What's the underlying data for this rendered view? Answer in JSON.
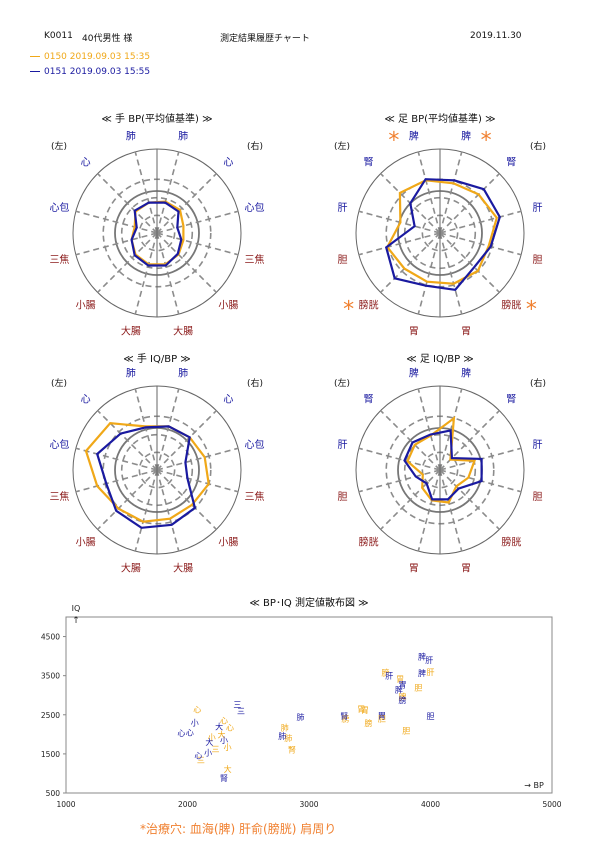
{
  "header": {
    "patient_id": "K0011",
    "patient_desc": "40代男性 様",
    "title": "測定結果履歴チャート",
    "date": "2019.11.30"
  },
  "legend": [
    {
      "label": "0150  2019.09.03  15:35",
      "color": "#f0a818"
    },
    {
      "label": "0151  2019.09.03  15:55",
      "color": "#1a1aa0"
    }
  ],
  "colors": {
    "orange": "#f0a818",
    "blue": "#1a1aa0",
    "yin": "#1a1aa0",
    "yang": "#8b1a1a",
    "grid": "#8c8c8c",
    "star": "#f08030"
  },
  "note": "*治療穴: 血海(脾) 肝俞(膀胱) 肩周り",
  "chart_data": [
    {
      "type": "radar",
      "title": "≪ 手 BP(平均値基準) ≫",
      "side_left": "(左)",
      "side_right": "(右)",
      "axes": [
        {
          "label": "肺",
          "kind": "yin"
        },
        {
          "label": "心",
          "kind": "yin"
        },
        {
          "label": "心包",
          "kind": "yin"
        },
        {
          "label": "三焦",
          "kind": "yang"
        },
        {
          "label": "小腸",
          "kind": "yang"
        },
        {
          "label": "大腸",
          "kind": "yang"
        },
        {
          "label": "大腸",
          "kind": "yang"
        },
        {
          "label": "小腸",
          "kind": "yang"
        },
        {
          "label": "三焦",
          "kind": "yang"
        },
        {
          "label": "心包",
          "kind": "yin"
        },
        {
          "label": "心",
          "kind": "yin"
        },
        {
          "label": "肺",
          "kind": "yin"
        }
      ],
      "rmax": 4,
      "series": [
        {
          "name": "0150",
          "color": "orange",
          "values": [
            1.55,
            1.55,
            1.3,
            1.3,
            1.45,
            1.55,
            1.55,
            1.45,
            1.25,
            1.1,
            1.45,
            1.5
          ]
        },
        {
          "name": "0151",
          "color": "blue",
          "values": [
            1.5,
            1.45,
            1.0,
            1.2,
            1.4,
            1.6,
            1.6,
            1.5,
            1.25,
            1.0,
            1.5,
            1.5
          ]
        }
      ]
    },
    {
      "type": "radar",
      "title": "≪ 足 BP(平均値基準) ≫",
      "side_left": "(左)",
      "side_right": "(右)",
      "axes": [
        {
          "label": "脾",
          "kind": "yin",
          "star": true
        },
        {
          "label": "腎",
          "kind": "yin"
        },
        {
          "label": "肝",
          "kind": "yin"
        },
        {
          "label": "胆",
          "kind": "yang"
        },
        {
          "label": "膀胱",
          "kind": "yang",
          "star": true
        },
        {
          "label": "胃",
          "kind": "yang"
        },
        {
          "label": "胃",
          "kind": "yang"
        },
        {
          "label": "膀胱",
          "kind": "yang",
          "star": true
        },
        {
          "label": "胆",
          "kind": "yang"
        },
        {
          "label": "肝",
          "kind": "yin"
        },
        {
          "label": "腎",
          "kind": "yin"
        },
        {
          "label": "脾",
          "kind": "yin",
          "star": true
        }
      ],
      "rmax": 4,
      "series": [
        {
          "name": "0150",
          "color": "orange",
          "values": [
            2.45,
            2.6,
            2.8,
            2.4,
            2.55,
            2.5,
            2.4,
            2.4,
            2.6,
            1.95,
            2.7,
            2.6
          ]
        },
        {
          "name": "0151",
          "color": "blue",
          "values": [
            2.6,
            2.95,
            2.95,
            2.5,
            2.3,
            2.8,
            2.6,
            3.05,
            2.65,
            1.25,
            2.0,
            2.65
          ]
        }
      ]
    },
    {
      "type": "radar",
      "title": "≪ 手 IQ/BP ≫",
      "side_left": "(左)",
      "side_right": "(右)",
      "axes": [
        {
          "label": "肺",
          "kind": "yin"
        },
        {
          "label": "心",
          "kind": "yin"
        },
        {
          "label": "心包",
          "kind": "yin"
        },
        {
          "label": "三焦",
          "kind": "yang"
        },
        {
          "label": "小腸",
          "kind": "yang"
        },
        {
          "label": "大腸",
          "kind": "yang"
        },
        {
          "label": "大腸",
          "kind": "yang"
        },
        {
          "label": "小腸",
          "kind": "yang"
        },
        {
          "label": "三焦",
          "kind": "yang"
        },
        {
          "label": "心包",
          "kind": "yin"
        },
        {
          "label": "心",
          "kind": "yin"
        },
        {
          "label": "肺",
          "kind": "yin"
        }
      ],
      "rmax": 4,
      "series": [
        {
          "name": "0150",
          "color": "orange",
          "values": [
            2.15,
            2.2,
            2.35,
            2.55,
            2.35,
            2.4,
            2.55,
            2.6,
            2.95,
            3.5,
            3.15,
            2.15
          ]
        },
        {
          "name": "0151",
          "color": "blue",
          "values": [
            2.15,
            2.2,
            1.4,
            1.5,
            2.55,
            2.7,
            2.85,
            2.75,
            2.5,
            2.95,
            2.45,
            2.1
          ]
        }
      ]
    },
    {
      "type": "radar",
      "title": "≪ 足 IQ/BP ≫",
      "side_left": "(左)",
      "side_right": "(右)",
      "axes": [
        {
          "label": "脾",
          "kind": "yin"
        },
        {
          "label": "腎",
          "kind": "yin"
        },
        {
          "label": "肝",
          "kind": "yin"
        },
        {
          "label": "胆",
          "kind": "yang"
        },
        {
          "label": "膀胱",
          "kind": "yang"
        },
        {
          "label": "胃",
          "kind": "yang"
        },
        {
          "label": "胃",
          "kind": "yang"
        },
        {
          "label": "膀胱",
          "kind": "yang"
        },
        {
          "label": "胆",
          "kind": "yang"
        },
        {
          "label": "肝",
          "kind": "yin"
        },
        {
          "label": "腎",
          "kind": "yin"
        },
        {
          "label": "脾",
          "kind": "yin"
        }
      ],
      "rmax": 4,
      "series": [
        {
          "name": "0150",
          "color": "orange",
          "values": [
            2.55,
            0.7,
            1.7,
            1.4,
            1.1,
            1.6,
            1.5,
            1.2,
            0.85,
            1.6,
            1.7,
            1.7
          ]
        },
        {
          "name": "0151",
          "color": "blue",
          "values": [
            1.95,
            0.8,
            2.05,
            2.05,
            1.25,
            1.45,
            1.45,
            0.9,
            1.2,
            1.75,
            1.85,
            1.75
          ]
        }
      ]
    },
    {
      "type": "scatter",
      "title": "≪ BP･IQ 測定値散布図 ≫",
      "xlabel": "→ BP",
      "ylabel": "IQ ↑",
      "xlim": [
        1000,
        5000
      ],
      "ylim": [
        500,
        5000
      ],
      "xticks": [
        1000,
        2000,
        3000,
        4000,
        5000
      ],
      "yticks": [
        500,
        1500,
        2500,
        3500,
        4500
      ],
      "series": [
        {
          "name": "0150",
          "color": "orange",
          "points": [
            {
              "x": 2080,
              "y": 2630,
              "label": "心"
            },
            {
              "x": 2300,
              "y": 2350,
              "label": "心"
            },
            {
              "x": 2350,
              "y": 2170,
              "label": "心"
            },
            {
              "x": 2280,
              "y": 2000,
              "label": "大"
            },
            {
              "x": 2330,
              "y": 1680,
              "label": "小"
            },
            {
              "x": 2230,
              "y": 1620,
              "label": "三"
            },
            {
              "x": 2110,
              "y": 1340,
              "label": "三"
            },
            {
              "x": 2330,
              "y": 1120,
              "label": "大"
            },
            {
              "x": 2200,
              "y": 1930,
              "label": "小"
            },
            {
              "x": 2800,
              "y": 2180,
              "label": "肺"
            },
            {
              "x": 2830,
              "y": 1900,
              "label": "肺"
            },
            {
              "x": 2860,
              "y": 1610,
              "label": "腎"
            },
            {
              "x": 3300,
              "y": 2400,
              "label": "膀"
            },
            {
              "x": 3430,
              "y": 2650,
              "label": "胃"
            },
            {
              "x": 3460,
              "y": 2620,
              "label": "胃"
            },
            {
              "x": 3490,
              "y": 2290,
              "label": "膀"
            },
            {
              "x": 3630,
              "y": 3580,
              "label": "膀"
            },
            {
              "x": 3750,
              "y": 3420,
              "label": "胃"
            },
            {
              "x": 3900,
              "y": 3200,
              "label": "胆"
            },
            {
              "x": 4000,
              "y": 3600,
              "label": "肝"
            },
            {
              "x": 3770,
              "y": 2970,
              "label": "脾"
            },
            {
              "x": 3600,
              "y": 2400,
              "label": "胆"
            },
            {
              "x": 3800,
              "y": 2100,
              "label": "胆"
            }
          ]
        },
        {
          "name": "0151",
          "color": "blue",
          "points": [
            {
              "x": 2060,
              "y": 2300,
              "label": "小"
            },
            {
              "x": 1950,
              "y": 2040,
              "label": "心"
            },
            {
              "x": 2020,
              "y": 2050,
              "label": "心"
            },
            {
              "x": 2180,
              "y": 1800,
              "label": "大"
            },
            {
              "x": 2260,
              "y": 2200,
              "label": "大"
            },
            {
              "x": 2410,
              "y": 2760,
              "label": "三"
            },
            {
              "x": 2440,
              "y": 2600,
              "label": "三"
            },
            {
              "x": 2170,
              "y": 1530,
              "label": "小"
            },
            {
              "x": 2090,
              "y": 1460,
              "label": "心"
            },
            {
              "x": 2300,
              "y": 880,
              "label": "腎"
            },
            {
              "x": 2300,
              "y": 1860,
              "label": "小"
            },
            {
              "x": 2780,
              "y": 1960,
              "label": "肺"
            },
            {
              "x": 2930,
              "y": 2440,
              "label": "肺"
            },
            {
              "x": 3290,
              "y": 2470,
              "label": "腎"
            },
            {
              "x": 3600,
              "y": 2480,
              "label": "胃"
            },
            {
              "x": 3660,
              "y": 3510,
              "label": "肝"
            },
            {
              "x": 3770,
              "y": 3280,
              "label": "胃"
            },
            {
              "x": 3740,
              "y": 3140,
              "label": "脾"
            },
            {
              "x": 3770,
              "y": 2880,
              "label": "膀"
            },
            {
              "x": 3930,
              "y": 3990,
              "label": "脾"
            },
            {
              "x": 3990,
              "y": 3900,
              "label": "肝"
            },
            {
              "x": 3930,
              "y": 3570,
              "label": "脾"
            },
            {
              "x": 4000,
              "y": 2470,
              "label": "胆"
            }
          ]
        }
      ]
    }
  ]
}
